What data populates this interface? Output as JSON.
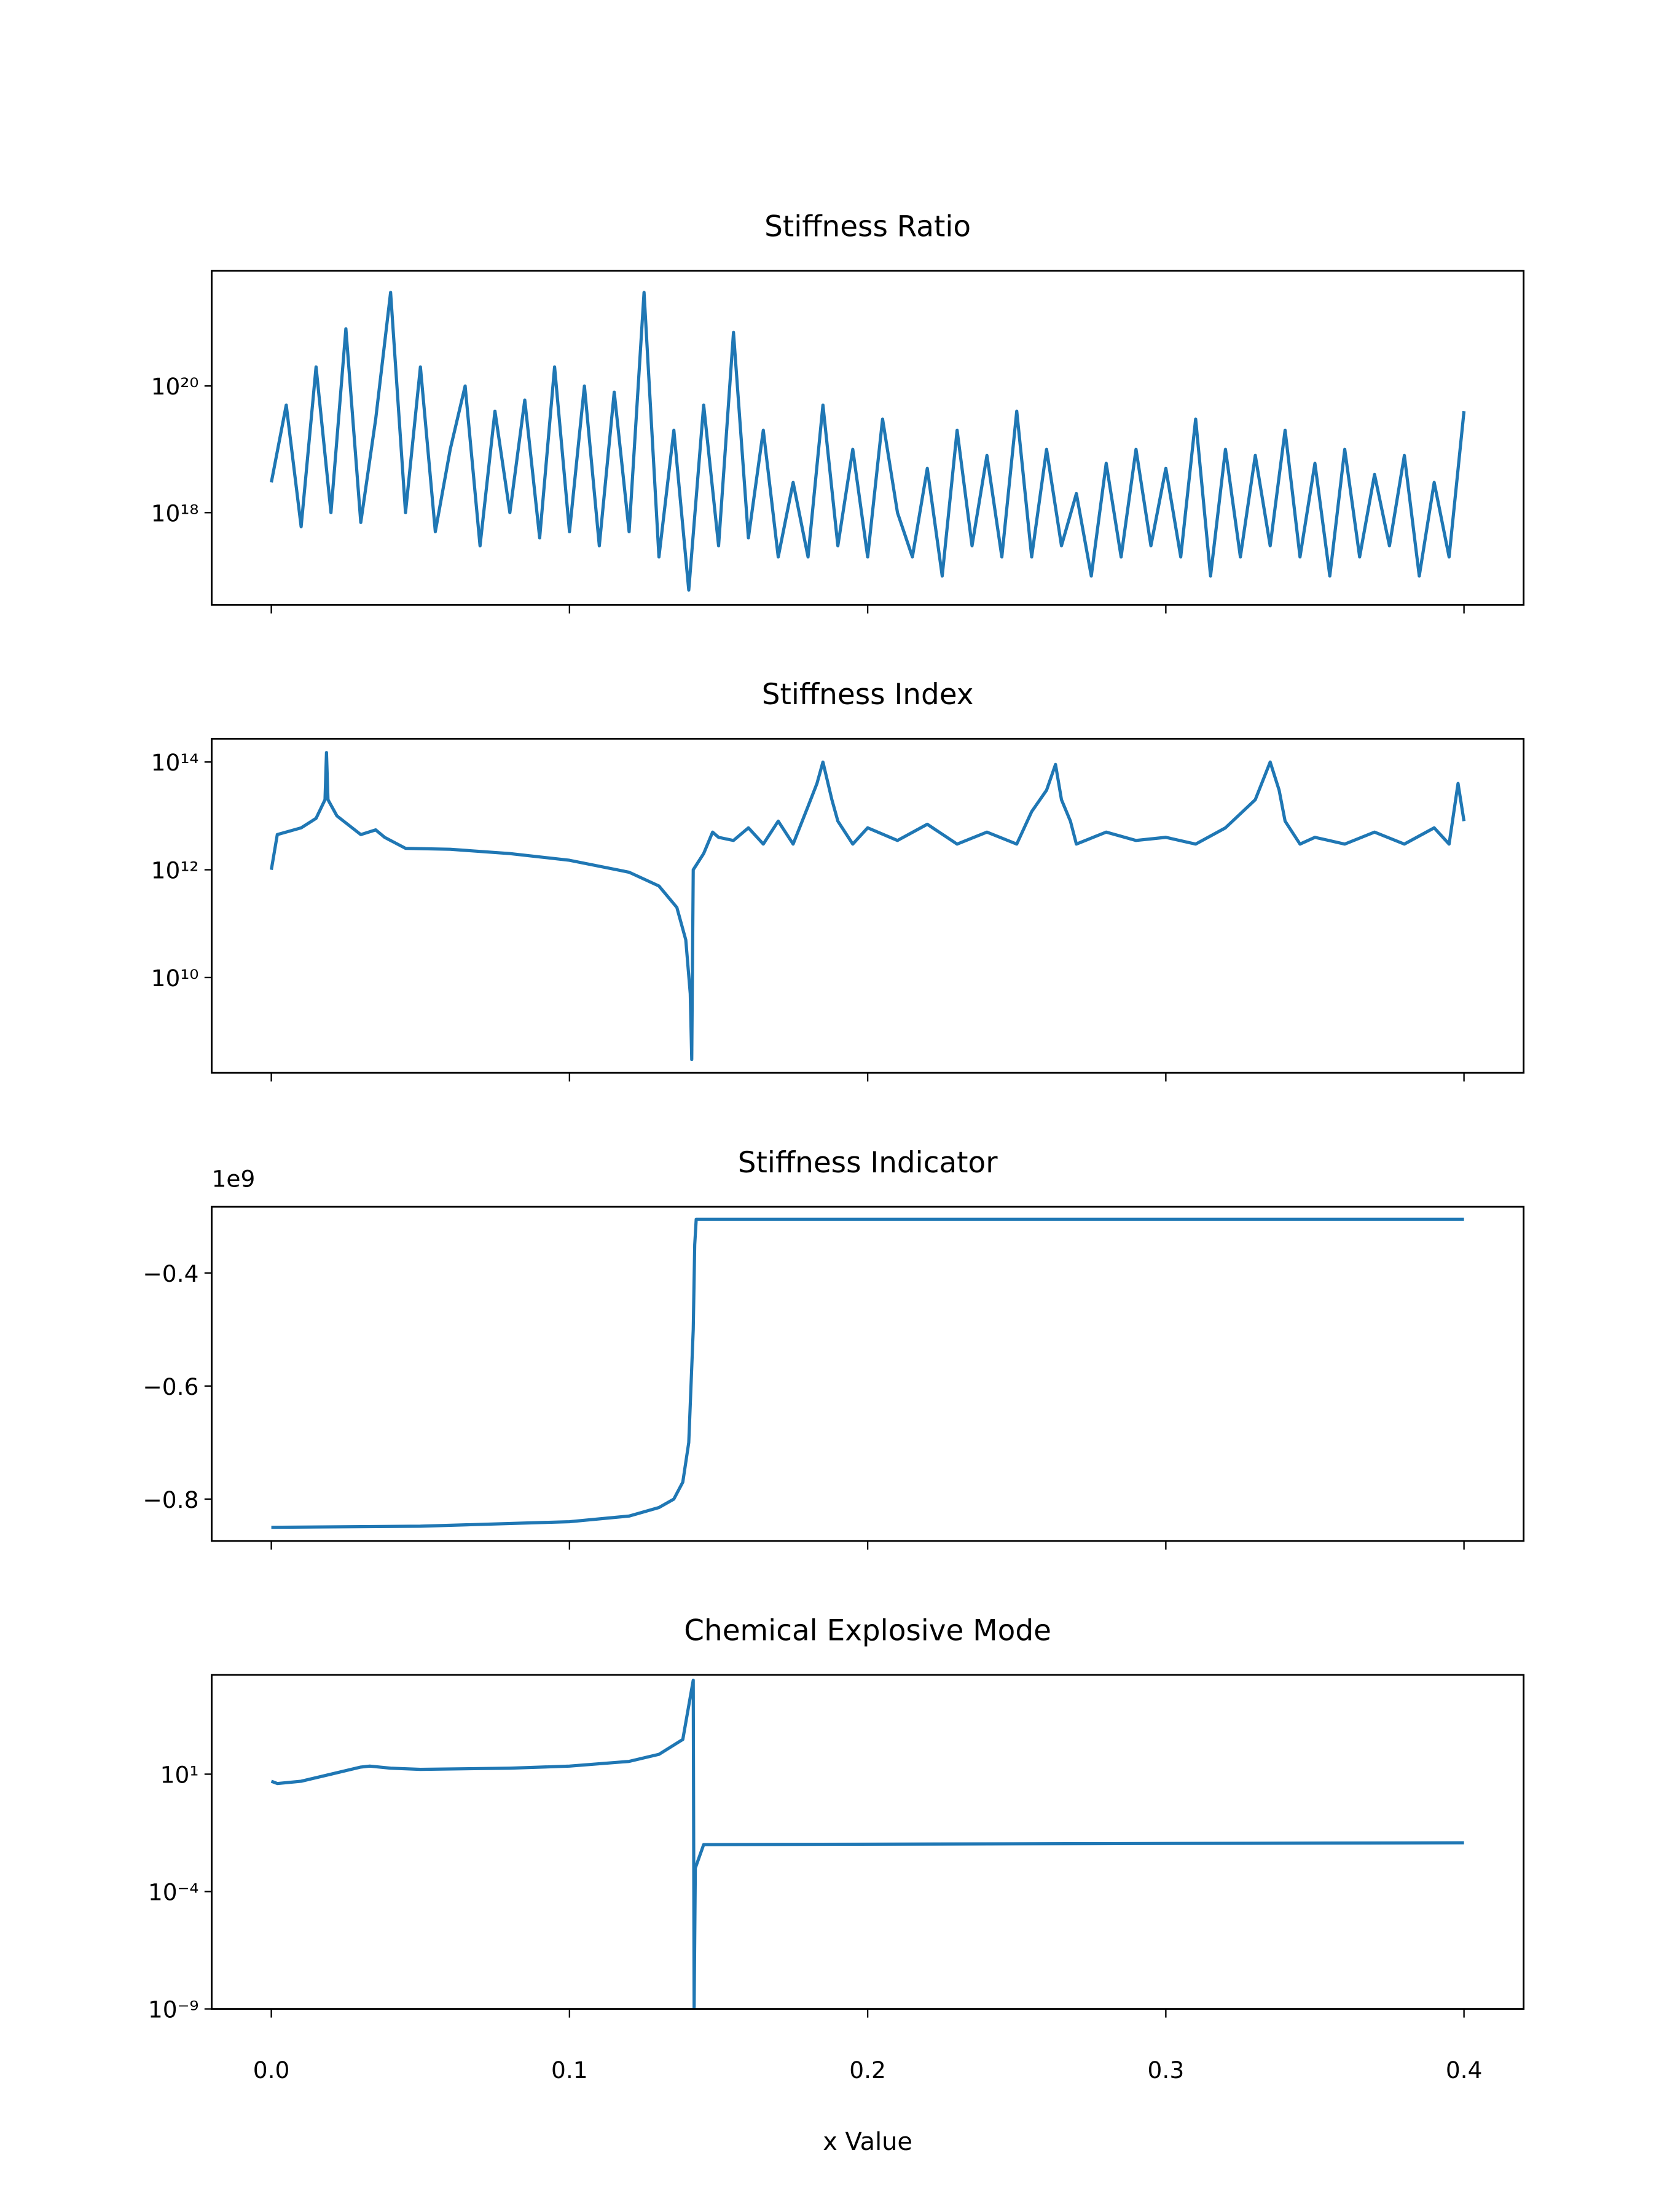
{
  "chart_data": [
    {
      "type": "line",
      "title": "Stiffness Ratio",
      "yscale": "log",
      "color": "#1f77b4",
      "ylim": [
        3.5e+16,
        6.6e+21
      ],
      "yticks": [
        {
          "value": 1e+18,
          "label": "10¹⁸"
        },
        {
          "value": 1e+20,
          "label": "10²⁰"
        }
      ],
      "x": [
        0,
        0.005,
        0.01,
        0.015,
        0.02,
        0.025,
        0.03,
        0.035,
        0.04,
        0.045,
        0.05,
        0.055,
        0.06,
        0.065,
        0.07,
        0.075,
        0.08,
        0.085,
        0.09,
        0.095,
        0.1,
        0.105,
        0.11,
        0.115,
        0.12,
        0.125,
        0.13,
        0.135,
        0.14,
        0.145,
        0.15,
        0.155,
        0.16,
        0.165,
        0.17,
        0.175,
        0.18,
        0.185,
        0.19,
        0.195,
        0.2,
        0.205,
        0.21,
        0.215,
        0.22,
        0.225,
        0.23,
        0.235,
        0.24,
        0.245,
        0.25,
        0.255,
        0.26,
        0.265,
        0.27,
        0.275,
        0.28,
        0.285,
        0.29,
        0.295,
        0.3,
        0.305,
        0.31,
        0.315,
        0.32,
        0.325,
        0.33,
        0.335,
        0.34,
        0.345,
        0.35,
        0.355,
        0.36,
        0.365,
        0.37,
        0.375,
        0.38,
        0.385,
        0.39,
        0.395,
        0.4
      ],
      "values": [
        3e+18,
        5e+19,
        6e+17,
        2e+20,
        1e+18,
        8e+20,
        7e+17,
        3e+19,
        3e+21,
        1e+18,
        2e+20,
        5e+17,
        1e+19,
        1e+20,
        3e+17,
        4e+19,
        1e+18,
        6e+19,
        4e+17,
        2e+20,
        5e+17,
        1e+20,
        3e+17,
        8e+19,
        5e+17,
        3e+21,
        2e+17,
        2e+19,
        6e+16,
        5e+19,
        3e+17,
        7e+20,
        4e+17,
        2e+19,
        2e+17,
        3e+18,
        2e+17,
        5e+19,
        3e+17,
        1e+19,
        2e+17,
        3e+19,
        1e+18,
        2e+17,
        5e+18,
        1e+17,
        2e+19,
        3e+17,
        8e+18,
        2e+17,
        4e+19,
        2e+17,
        1e+19,
        3e+17,
        2e+18,
        1e+17,
        6e+18,
        2e+17,
        1e+19,
        3e+17,
        5e+18,
        2e+17,
        3e+19,
        1e+17,
        1e+19,
        2e+17,
        8e+18,
        3e+17,
        2e+19,
        2e+17,
        6e+18,
        1e+17,
        1e+19,
        2e+17,
        4e+18,
        3e+17,
        8e+18,
        1e+17,
        3e+18,
        2e+17,
        4e+19
      ]
    },
    {
      "type": "line",
      "title": "Stiffness Index",
      "yscale": "log",
      "color": "#1f77b4",
      "ylim": [
        170000000.0,
        270000000000000.0
      ],
      "yticks": [
        {
          "value": 10000000000.0,
          "label": "10¹⁰"
        },
        {
          "value": 1000000000000.0,
          "label": "10¹²"
        },
        {
          "value": 100000000000000.0,
          "label": "10¹⁴"
        }
      ],
      "x": [
        0,
        0.002,
        0.01,
        0.015,
        0.018,
        0.0185,
        0.019,
        0.022,
        0.03,
        0.035,
        0.038,
        0.045,
        0.06,
        0.08,
        0.1,
        0.12,
        0.13,
        0.136,
        0.139,
        0.1405,
        0.141,
        0.1415,
        0.145,
        0.148,
        0.15,
        0.155,
        0.16,
        0.165,
        0.17,
        0.175,
        0.18,
        0.183,
        0.185,
        0.188,
        0.19,
        0.195,
        0.2,
        0.21,
        0.22,
        0.23,
        0.24,
        0.25,
        0.255,
        0.26,
        0.263,
        0.265,
        0.268,
        0.27,
        0.28,
        0.29,
        0.3,
        0.31,
        0.32,
        0.33,
        0.335,
        0.338,
        0.34,
        0.345,
        0.35,
        0.36,
        0.37,
        0.38,
        0.39,
        0.395,
        0.398,
        0.4
      ],
      "values": [
        1000000000000.0,
        4500000000000.0,
        6000000000000.0,
        9000000000000.0,
        20000000000000.0,
        150000000000000.0,
        20000000000000.0,
        10000000000000.0,
        4500000000000.0,
        5500000000000.0,
        4000000000000.0,
        2500000000000.0,
        2400000000000.0,
        2000000000000.0,
        1500000000000.0,
        900000000000.0,
        500000000000.0,
        200000000000.0,
        50000000000.0,
        5000000000.0,
        300000000.0,
        1000000000000.0,
        2000000000000.0,
        5000000000000.0,
        4000000000000.0,
        3500000000000.0,
        6000000000000.0,
        3000000000000.0,
        8000000000000.0,
        3000000000000.0,
        15000000000000.0,
        40000000000000.0,
        100000000000000.0,
        20000000000000.0,
        8000000000000.0,
        3000000000000.0,
        6000000000000.0,
        3500000000000.0,
        7000000000000.0,
        3000000000000.0,
        5000000000000.0,
        3000000000000.0,
        12000000000000.0,
        30000000000000.0,
        90000000000000.0,
        20000000000000.0,
        8000000000000.0,
        3000000000000.0,
        5000000000000.0,
        3500000000000.0,
        4000000000000.0,
        3000000000000.0,
        6000000000000.0,
        20000000000000.0,
        100000000000000.0,
        30000000000000.0,
        8000000000000.0,
        3000000000000.0,
        4000000000000.0,
        3000000000000.0,
        5000000000000.0,
        3000000000000.0,
        6000000000000.0,
        3000000000000.0,
        40000000000000.0,
        8000000000000.0
      ]
    },
    {
      "type": "line",
      "title": "Stiffness Indicator",
      "offset_text": "1e9",
      "color": "#1f77b4",
      "ylim": [
        -0.874,
        -0.283
      ],
      "yticks": [
        {
          "value": -0.8,
          "label": "−0.8"
        },
        {
          "value": -0.6,
          "label": "−0.6"
        },
        {
          "value": -0.4,
          "label": "−0.4"
        }
      ],
      "x": [
        0,
        0.05,
        0.1,
        0.12,
        0.13,
        0.135,
        0.138,
        0.14,
        0.1415,
        0.142,
        0.1425,
        0.16,
        0.4
      ],
      "values": [
        -0.85,
        -0.848,
        -0.84,
        -0.83,
        -0.815,
        -0.8,
        -0.77,
        -0.7,
        -0.5,
        -0.35,
        -0.305,
        -0.305,
        -0.305
      ]
    },
    {
      "type": "line",
      "title": "Chemical Explosive Mode",
      "yscale": "log",
      "color": "#1f77b4",
      "ylim": [
        1e-09,
        170000.0
      ],
      "xlim": [
        -0.02,
        0.42
      ],
      "xlabel": "x Value",
      "xticks": [
        {
          "value": 0,
          "label": "0.0"
        },
        {
          "value": 0.1,
          "label": "0.1"
        },
        {
          "value": 0.2,
          "label": "0.2"
        },
        {
          "value": 0.3,
          "label": "0.3"
        },
        {
          "value": 0.4,
          "label": "0.4"
        }
      ],
      "yticks": [
        {
          "value": 1e-09,
          "label": "10⁻⁹"
        },
        {
          "value": 0.0001,
          "label": "10⁻⁴"
        },
        {
          "value": 10,
          "label": "10¹"
        }
      ],
      "x": [
        0,
        0.002,
        0.01,
        0.02,
        0.03,
        0.033,
        0.04,
        0.05,
        0.08,
        0.1,
        0.12,
        0.13,
        0.138,
        0.1415,
        0.1418,
        0.1422,
        0.145,
        0.4
      ],
      "values": [
        5,
        4,
        5,
        10,
        20,
        22,
        18,
        16,
        18,
        22,
        35,
        70,
        300,
        100000.0,
        1e-09,
        0.001,
        0.01,
        0.012
      ]
    }
  ]
}
